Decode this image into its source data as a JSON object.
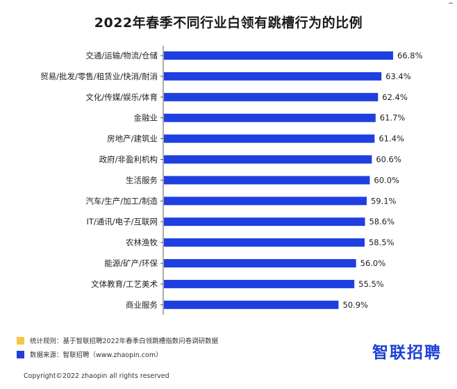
{
  "chart_data": {
    "type": "bar",
    "orientation": "horizontal",
    "title": "2022年春季不同行业白领有跳槽行为的比例",
    "categories": [
      "交通/运输/物流/仓储",
      "贸易/批发/零售/租赁业/快消/耐消",
      "文化/传媒/娱乐/体育",
      "金融业",
      "房地产/建筑业",
      "政府/非盈利机构",
      "生活服务",
      "汽车/生产/加工/制造",
      "IT/通讯/电子/互联网",
      "农林渔牧",
      "能源/矿产/环保",
      "文体教育/工艺美术",
      "商业服务"
    ],
    "values": [
      66.8,
      63.4,
      62.4,
      61.7,
      61.4,
      60.6,
      60.0,
      59.1,
      58.6,
      58.5,
      56.0,
      55.5,
      50.9
    ],
    "value_labels": [
      "66.8%",
      "63.4%",
      "62.4%",
      "61.7%",
      "61.4%",
      "60.6%",
      "60.0%",
      "59.1%",
      "58.6%",
      "58.5%",
      "56.0%",
      "55.5%",
      "50.9%"
    ],
    "xlim": [
      0,
      70
    ],
    "bar_color": "#1f3fe0",
    "grid": false,
    "xlabel": "",
    "ylabel": ""
  },
  "legend": [
    {
      "color": "#f5c842",
      "text": "统计规则：基于智联招聘2022年春季白领跳槽指数问卷调研数据"
    },
    {
      "color": "#1f3fe0",
      "text": "数据来源：智联招聘（www.zhaopin.com）"
    }
  ],
  "brand": {
    "logo_text": "智联招聘",
    "color": "#1d3fd6"
  },
  "copyright": "Copyright©2022 zhaopin all rights reserved"
}
